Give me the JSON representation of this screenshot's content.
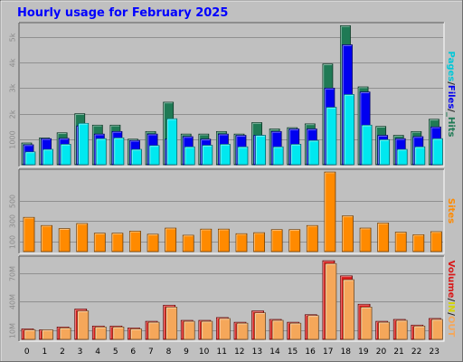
{
  "title": "Hourly usage for February 2025",
  "colors": {
    "hits": "#1f7a55",
    "files": "#0000f0",
    "pages": "#00e8f0",
    "sites": "#ff8a00",
    "volume": "#d91818",
    "in": "#e6e600",
    "out": "#f5a75a",
    "panel_bg": "#c0c0c0",
    "frame": "#a9a9a9",
    "grid": "#909090"
  },
  "legend": {
    "top": [
      {
        "text": "Hits",
        "color": "#1f7a55"
      },
      {
        "text": "_",
        "color": "#1f7a55"
      },
      {
        "text": "/",
        "color": "#202020"
      },
      {
        "text": "Files",
        "color": "#0000f0"
      },
      {
        "text": "/",
        "color": "#202020"
      },
      {
        "text": "Pages",
        "color": "#00c8d8"
      }
    ],
    "middle": [
      {
        "text": "Sites",
        "color": "#ff8a00"
      }
    ],
    "bottom": [
      {
        "text": "OUT",
        "color": "#f5a75a"
      },
      {
        "text": "/",
        "color": "#202020"
      },
      {
        "text": "IN",
        "color": "#d4d400"
      },
      {
        "text": "/",
        "color": "#202020"
      },
      {
        "text": "Volume",
        "color": "#d91818"
      }
    ]
  },
  "chart_data": [
    {
      "type": "bar",
      "name": "hits-files-pages",
      "categories": [
        "0",
        "1",
        "2",
        "3",
        "4",
        "5",
        "6",
        "7",
        "8",
        "9",
        "10",
        "11",
        "12",
        "13",
        "14",
        "15",
        "16",
        "17",
        "18",
        "19",
        "20",
        "21",
        "22",
        "23"
      ],
      "series": [
        {
          "name": "Hits",
          "values": [
            850,
            1050,
            1250,
            2000,
            1550,
            1550,
            1000,
            1300,
            2450,
            1200,
            1200,
            1300,
            1200,
            1650,
            1400,
            1450,
            1600,
            3950,
            5450,
            3050,
            1500,
            1150,
            1300,
            1780
          ]
        },
        {
          "name": "Files",
          "values": [
            780,
            1020,
            1030,
            1520,
            1200,
            1300,
            950,
            1200,
            1000,
            1100,
            1000,
            1200,
            1150,
            1150,
            1300,
            1400,
            1400,
            3000,
            4700,
            2850,
            1150,
            1020,
            1100,
            1480
          ]
        },
        {
          "name": "Pages",
          "values": [
            500,
            600,
            800,
            1620,
            1020,
            1050,
            600,
            750,
            1800,
            700,
            760,
            800,
            700,
            1150,
            700,
            800,
            950,
            2250,
            2750,
            1550,
            980,
            600,
            700,
            1020
          ]
        }
      ],
      "ylim": [
        0,
        5500
      ],
      "y_ticks": [
        {
          "value": 1000,
          "label": "1000"
        },
        {
          "value": 2000,
          "label": "2k"
        },
        {
          "value": 3000,
          "label": "3k"
        },
        {
          "value": 4000,
          "label": "4k"
        },
        {
          "value": 5000,
          "label": "5k"
        }
      ],
      "grid": true
    },
    {
      "type": "bar",
      "name": "sites",
      "categories": [
        "0",
        "1",
        "2",
        "3",
        "4",
        "5",
        "6",
        "7",
        "8",
        "9",
        "10",
        "11",
        "12",
        "13",
        "14",
        "15",
        "16",
        "17",
        "18",
        "19",
        "20",
        "21",
        "22",
        "23"
      ],
      "series": [
        {
          "name": "Sites",
          "values": [
            335,
            255,
            225,
            275,
            180,
            180,
            200,
            170,
            230,
            160,
            220,
            220,
            175,
            185,
            215,
            215,
            255,
            780,
            350,
            230,
            280,
            190,
            165,
            195
          ]
        }
      ],
      "ylim": [
        0,
        790
      ],
      "y_ticks": [
        {
          "value": 100,
          "label": "100"
        },
        {
          "value": 300,
          "label": "300"
        },
        {
          "value": 500,
          "label": "500"
        }
      ],
      "grid": true
    },
    {
      "type": "bar",
      "name": "volume",
      "categories": [
        "0",
        "1",
        "2",
        "3",
        "4",
        "5",
        "6",
        "7",
        "8",
        "9",
        "10",
        "11",
        "12",
        "13",
        "14",
        "15",
        "16",
        "17",
        "18",
        "19",
        "20",
        "21",
        "22",
        "23"
      ],
      "series": [
        {
          "name": "Volume",
          "values": [
            11,
            10,
            13,
            32,
            14,
            14,
            12,
            19,
            36,
            20,
            20,
            23,
            18,
            30,
            21,
            18,
            26,
            83,
            67,
            37,
            19,
            21,
            15,
            22
          ]
        },
        {
          "name": "IN",
          "values": [
            0,
            0,
            0,
            0,
            0,
            0,
            0,
            0,
            0,
            0,
            0,
            0,
            0,
            0,
            0,
            0,
            0,
            0,
            0,
            0,
            0,
            0,
            0,
            0
          ]
        },
        {
          "name": "OUT",
          "values": [
            10,
            10,
            12,
            30,
            13,
            13,
            11,
            18,
            34,
            19,
            19,
            22,
            17,
            28,
            20,
            17,
            25,
            80,
            63,
            34,
            18,
            20,
            14,
            21
          ]
        }
      ],
      "ylim": [
        0,
        86
      ],
      "y_ticks": [
        {
          "value": 10,
          "label": "10M"
        },
        {
          "value": 40,
          "label": "40M"
        },
        {
          "value": 70,
          "label": "70M"
        }
      ],
      "grid": true
    }
  ]
}
